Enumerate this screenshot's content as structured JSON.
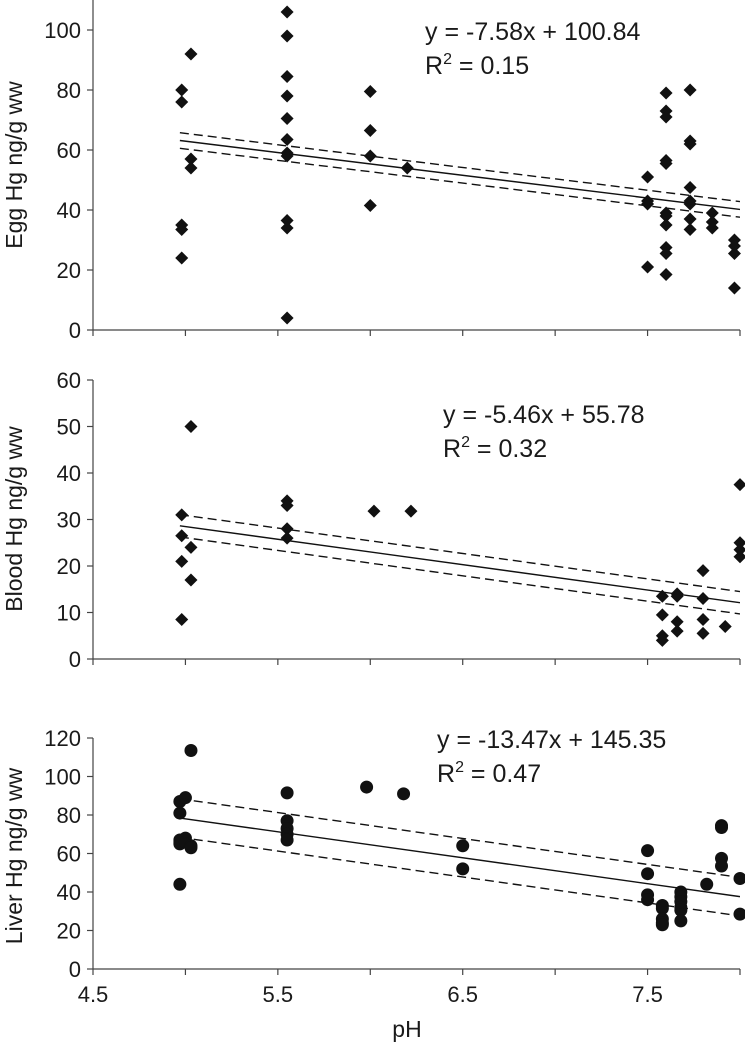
{
  "chart_data": [
    {
      "type": "scatter",
      "ylabel": "Egg Hg ng/g ww",
      "xlabel": "",
      "xlim": [
        4.5,
        8.0
      ],
      "ylim": [
        0,
        110
      ],
      "yticks": [
        0,
        20,
        40,
        60,
        80,
        100
      ],
      "marker": "diamond",
      "equation": "y = -7.58x + 100.84",
      "r2_prefix": "R",
      "r2_sup": "2",
      "r2_value": " = 0.15",
      "fit": {
        "slope": -7.58,
        "intercept": 100.84,
        "band": 2.6
      },
      "points": [
        [
          4.98,
          80
        ],
        [
          4.98,
          76
        ],
        [
          4.98,
          35
        ],
        [
          4.98,
          33.5
        ],
        [
          4.98,
          24
        ],
        [
          5.03,
          92
        ],
        [
          5.03,
          57
        ],
        [
          5.03,
          54
        ],
        [
          5.55,
          106
        ],
        [
          5.55,
          98
        ],
        [
          5.55,
          84.5
        ],
        [
          5.55,
          78
        ],
        [
          5.55,
          70.5
        ],
        [
          5.55,
          63.5
        ],
        [
          5.55,
          59
        ],
        [
          5.55,
          58
        ],
        [
          5.55,
          36.5
        ],
        [
          5.55,
          34
        ],
        [
          5.55,
          4
        ],
        [
          6.0,
          79.5
        ],
        [
          6.0,
          66.5
        ],
        [
          6.0,
          58
        ],
        [
          6.0,
          41.5
        ],
        [
          6.2,
          54
        ],
        [
          7.5,
          51
        ],
        [
          7.5,
          43
        ],
        [
          7.5,
          42
        ],
        [
          7.5,
          21
        ],
        [
          7.6,
          79
        ],
        [
          7.6,
          73
        ],
        [
          7.6,
          71
        ],
        [
          7.6,
          56.5
        ],
        [
          7.6,
          55.5
        ],
        [
          7.6,
          39
        ],
        [
          7.6,
          38
        ],
        [
          7.6,
          35
        ],
        [
          7.6,
          27.5
        ],
        [
          7.6,
          25.5
        ],
        [
          7.6,
          18.5
        ],
        [
          7.73,
          80
        ],
        [
          7.73,
          63
        ],
        [
          7.73,
          62
        ],
        [
          7.73,
          47.5
        ],
        [
          7.73,
          43
        ],
        [
          7.73,
          42
        ],
        [
          7.73,
          37
        ],
        [
          7.73,
          33.5
        ],
        [
          7.85,
          39
        ],
        [
          7.85,
          36
        ],
        [
          7.85,
          34
        ],
        [
          7.97,
          30
        ],
        [
          7.97,
          28
        ],
        [
          7.97,
          25.5
        ],
        [
          7.97,
          14
        ]
      ]
    },
    {
      "type": "scatter",
      "ylabel": "Blood Hg ng/g ww",
      "xlabel": "",
      "xlim": [
        4.5,
        8.0
      ],
      "ylim": [
        0,
        60
      ],
      "yticks": [
        0,
        10,
        20,
        30,
        40,
        50,
        60
      ],
      "marker": "diamond",
      "equation": "y = -5.46x + 55.78",
      "r2_prefix": "R",
      "r2_sup": "2",
      "r2_value": " = 0.32",
      "fit": {
        "slope": -5.46,
        "intercept": 55.78,
        "band": 2.4
      },
      "points": [
        [
          4.98,
          31
        ],
        [
          4.98,
          26.5
        ],
        [
          4.98,
          21
        ],
        [
          4.98,
          8.5
        ],
        [
          5.03,
          50
        ],
        [
          5.03,
          24
        ],
        [
          5.03,
          17
        ],
        [
          5.55,
          34
        ],
        [
          5.55,
          33
        ],
        [
          5.55,
          28
        ],
        [
          5.55,
          26
        ],
        [
          6.02,
          31.8
        ],
        [
          6.22,
          31.8
        ],
        [
          7.58,
          13.5
        ],
        [
          7.58,
          9.5
        ],
        [
          7.58,
          5
        ],
        [
          7.58,
          4
        ],
        [
          7.66,
          14
        ],
        [
          7.66,
          13.5
        ],
        [
          7.66,
          8
        ],
        [
          7.66,
          6
        ],
        [
          7.8,
          19
        ],
        [
          7.8,
          13
        ],
        [
          7.8,
          8.5
        ],
        [
          7.8,
          5.5
        ],
        [
          7.92,
          7
        ],
        [
          8.0,
          37.5
        ],
        [
          8.0,
          25
        ],
        [
          8.0,
          23.5
        ],
        [
          8.0,
          22
        ]
      ]
    },
    {
      "type": "scatter",
      "ylabel": "Liver Hg ng/g ww",
      "xlabel": "pH",
      "xlim": [
        4.5,
        8.0
      ],
      "ylim": [
        0,
        120
      ],
      "yticks": [
        0,
        20,
        40,
        60,
        80,
        100,
        120
      ],
      "xticks": [
        4.5,
        5.5,
        6.5,
        7.5
      ],
      "marker": "circle",
      "equation": "y = -13.47x + 145.35",
      "r2_prefix": "R",
      "r2_sup": "2",
      "r2_value": " = 0.47",
      "fit": {
        "slope": -13.47,
        "intercept": 145.35,
        "band": 10
      },
      "points": [
        [
          4.97,
          87
        ],
        [
          4.97,
          81
        ],
        [
          4.97,
          67
        ],
        [
          4.97,
          66
        ],
        [
          4.97,
          65
        ],
        [
          4.97,
          44
        ],
        [
          5.0,
          89
        ],
        [
          5.0,
          68
        ],
        [
          5.0,
          66
        ],
        [
          5.03,
          113.5
        ],
        [
          5.03,
          64
        ],
        [
          5.03,
          63
        ],
        [
          5.55,
          91.5
        ],
        [
          5.55,
          77
        ],
        [
          5.55,
          73
        ],
        [
          5.55,
          70
        ],
        [
          5.55,
          67
        ],
        [
          5.98,
          94.5
        ],
        [
          6.18,
          91
        ],
        [
          6.5,
          64
        ],
        [
          6.5,
          52
        ],
        [
          7.5,
          61.5
        ],
        [
          7.5,
          49.5
        ],
        [
          7.5,
          38.5
        ],
        [
          7.5,
          36
        ],
        [
          7.58,
          33
        ],
        [
          7.58,
          31.5
        ],
        [
          7.58,
          26
        ],
        [
          7.58,
          24
        ],
        [
          7.58,
          23
        ],
        [
          7.68,
          40
        ],
        [
          7.68,
          37.5
        ],
        [
          7.68,
          35
        ],
        [
          7.68,
          32
        ],
        [
          7.68,
          30.5
        ],
        [
          7.68,
          25
        ],
        [
          7.82,
          44
        ],
        [
          7.9,
          74.5
        ],
        [
          7.9,
          73.5
        ],
        [
          7.9,
          57.5
        ],
        [
          7.9,
          53.5
        ],
        [
          8.0,
          47
        ],
        [
          8.0,
          28.5
        ]
      ]
    }
  ]
}
